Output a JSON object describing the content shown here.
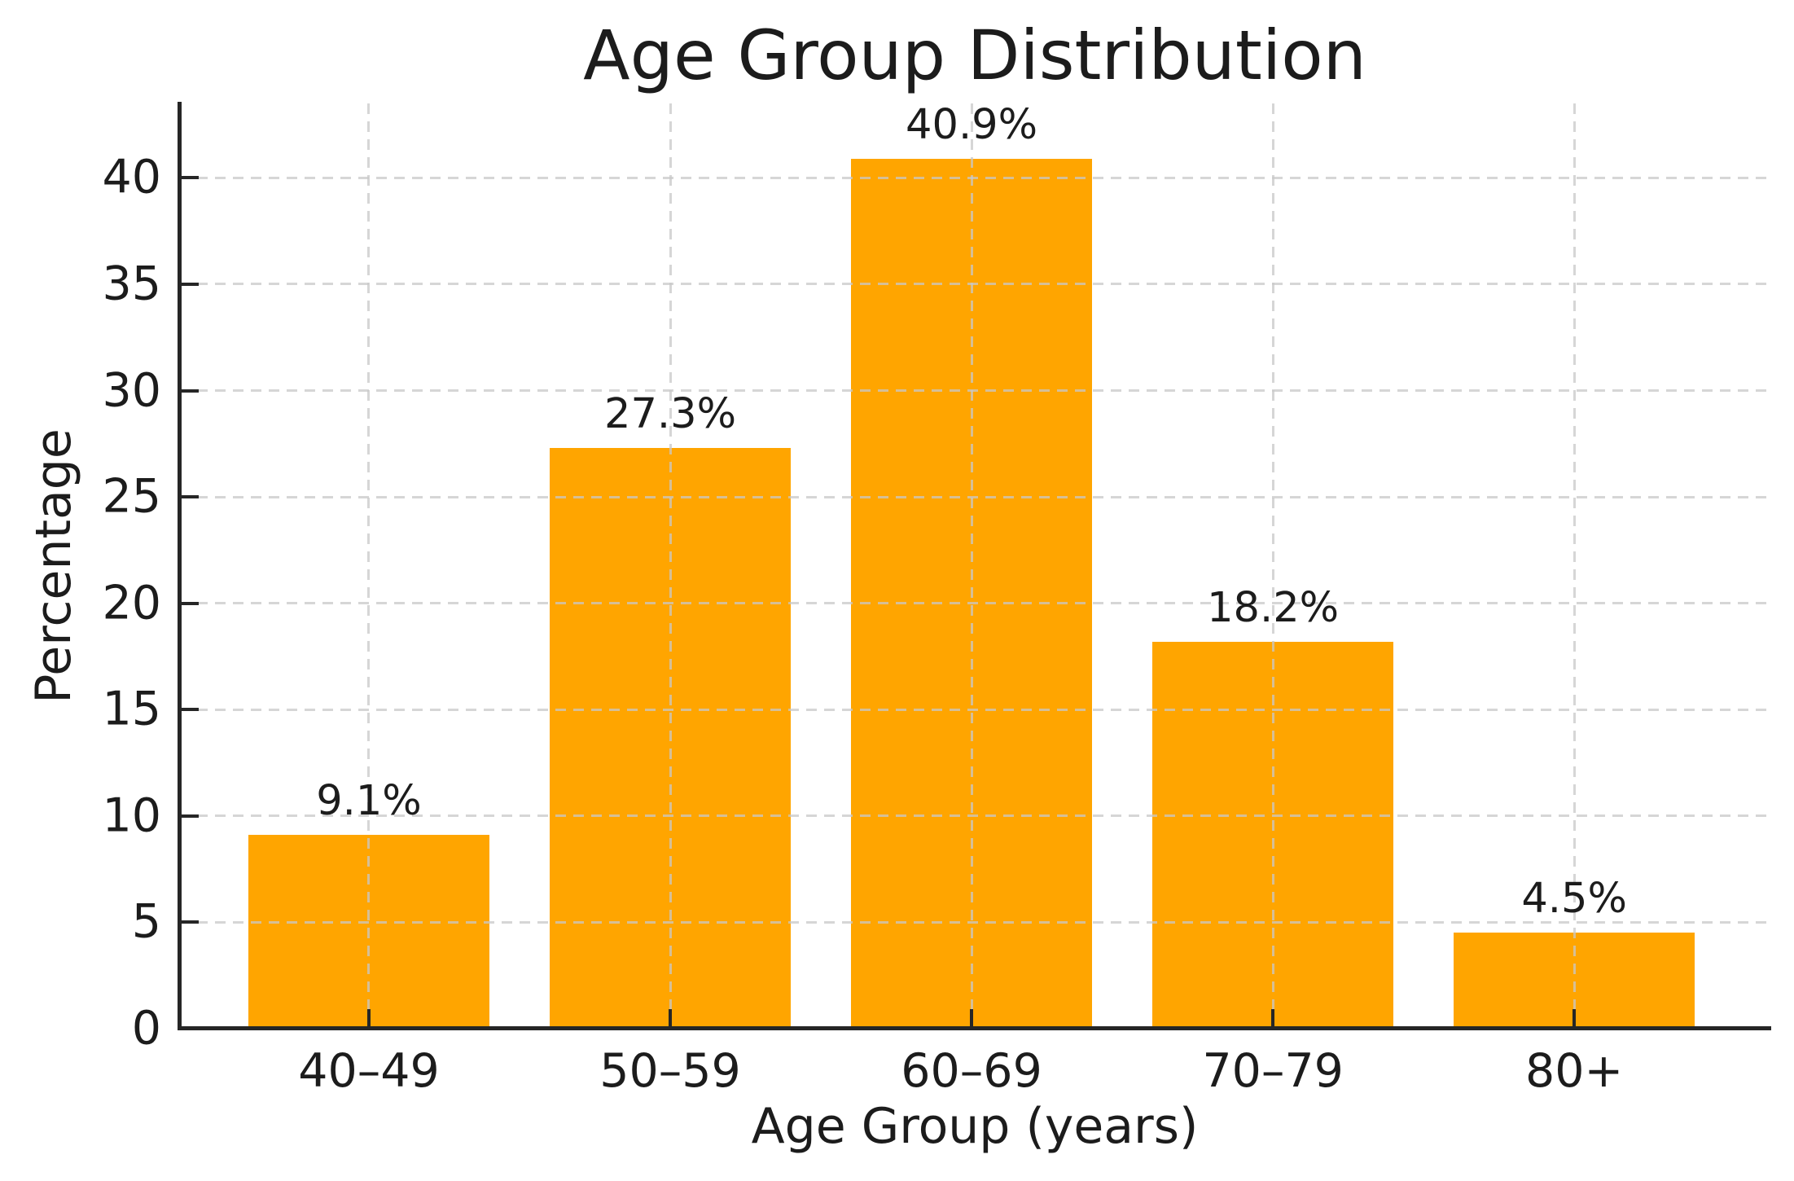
{
  "chart_data": {
    "type": "bar",
    "title": "Age Group Distribution",
    "xlabel": "Age Group (years)",
    "ylabel": "Percentage",
    "categories": [
      "40–49",
      "50–59",
      "60–69",
      "70–79",
      "80+"
    ],
    "values": [
      9.1,
      27.3,
      40.9,
      18.2,
      4.5
    ],
    "bar_labels": [
      "9.1%",
      "27.3%",
      "40.9%",
      "18.2%",
      "4.5%"
    ],
    "yticks": [
      0,
      5,
      10,
      15,
      20,
      25,
      30,
      35,
      40
    ],
    "ylim": [
      0,
      43.5
    ],
    "bar_color": "#FFA500",
    "grid": "dashed light-gray horizontal and vertical gridlines",
    "legend": "none",
    "text_color": "#1c1c1c",
    "axis_color": "#262626"
  }
}
